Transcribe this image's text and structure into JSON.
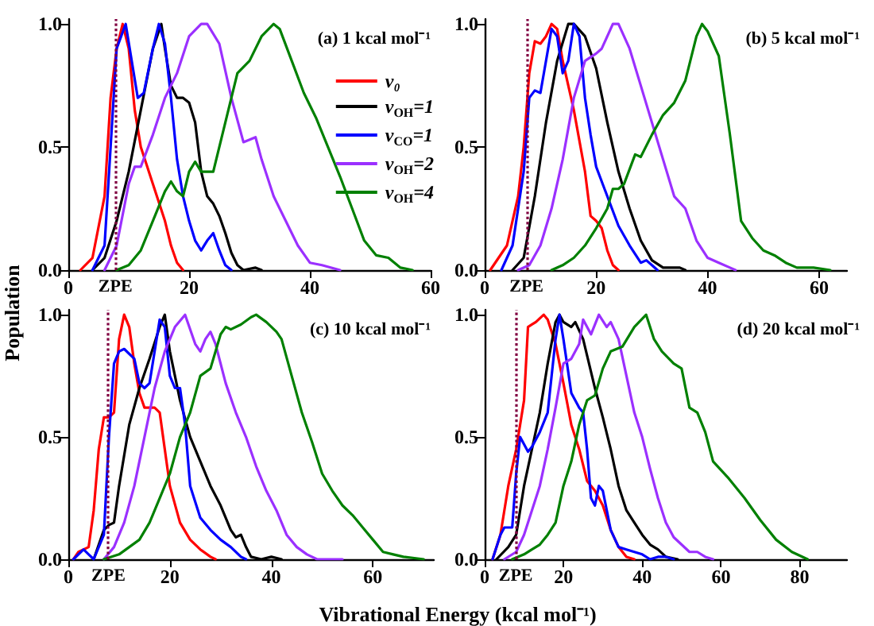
{
  "chart_data": [
    {
      "type": "line",
      "title": "(a) 1 kcal mol⁻¹",
      "ylabel": "Population",
      "xlim": [
        0,
        60
      ],
      "xticks": [
        0,
        20,
        40,
        60
      ],
      "ylim": [
        0,
        1.02
      ],
      "yticks": [
        {
          "value": 0,
          "label": "0.0"
        },
        {
          "value": 0.5,
          "label": "0.5"
        },
        {
          "value": 1,
          "label": "1.0"
        }
      ],
      "legend": "top right",
      "grid": false,
      "ref_lines": [
        {
          "axis": "x",
          "value": 7.8,
          "label": "ZPE",
          "color": "#800040",
          "line_style": "dotted"
        }
      ],
      "series": [
        {
          "name": "v₀",
          "color": "#ff0000",
          "x": [
            2,
            4,
            6,
            7,
            8,
            9,
            10,
            11,
            12,
            14,
            16,
            17,
            18,
            19
          ],
          "values": [
            0,
            0.05,
            0.3,
            0.7,
            0.9,
            1.0,
            0.9,
            0.65,
            0.5,
            0.35,
            0.2,
            0.1,
            0.03,
            0
          ]
        },
        {
          "name": "v$_{OH}$=1",
          "color": "#000000",
          "x": [
            4,
            6,
            8,
            10,
            12,
            14,
            15.4,
            16,
            17,
            18,
            19,
            20,
            21,
            22,
            23,
            24,
            25,
            26,
            27,
            28,
            29,
            31,
            32
          ],
          "values": [
            0,
            0.05,
            0.2,
            0.4,
            0.65,
            0.9,
            1.0,
            0.9,
            0.75,
            0.7,
            0.7,
            0.68,
            0.6,
            0.4,
            0.3,
            0.27,
            0.22,
            0.15,
            0.07,
            0.02,
            0,
            0.01,
            0
          ]
        },
        {
          "name": "v$_{CO}$=1",
          "color": "#0000ff",
          "x": [
            4,
            6,
            7,
            8,
            9.5,
            10.5,
            11.5,
            12.5,
            14,
            15,
            16,
            17,
            18,
            19,
            20,
            21,
            22,
            23,
            24,
            25,
            26,
            27
          ],
          "values": [
            0,
            0.1,
            0.5,
            0.9,
            1.0,
            0.85,
            0.7,
            0.72,
            0.9,
            1.0,
            0.92,
            0.7,
            0.45,
            0.3,
            0.2,
            0.12,
            0.08,
            0.12,
            0.15,
            0.08,
            0.02,
            0
          ]
        },
        {
          "name": "v$_{OH}$=2",
          "color": "#9b30ff",
          "x": [
            6,
            8,
            10,
            11,
            12,
            14,
            16,
            18,
            20,
            22,
            23,
            25,
            27,
            29,
            31,
            32,
            34,
            36,
            38,
            40,
            42,
            45
          ],
          "values": [
            0,
            0.1,
            0.35,
            0.42,
            0.42,
            0.55,
            0.7,
            0.8,
            0.95,
            1.0,
            1.0,
            0.92,
            0.7,
            0.52,
            0.54,
            0.45,
            0.3,
            0.2,
            0.1,
            0.03,
            0.02,
            0
          ]
        },
        {
          "name": "v$_{OH}$=4",
          "color": "#008000",
          "x": [
            8,
            10,
            12,
            14,
            16,
            17,
            18,
            19,
            20,
            21,
            22,
            24,
            26,
            28,
            30,
            32,
            34,
            35,
            37,
            39,
            41,
            43,
            45,
            47,
            49,
            51,
            53,
            55,
            57
          ],
          "values": [
            0,
            0.02,
            0.08,
            0.2,
            0.32,
            0.36,
            0.32,
            0.3,
            0.4,
            0.44,
            0.4,
            0.4,
            0.6,
            0.8,
            0.85,
            0.95,
            1.0,
            0.98,
            0.85,
            0.72,
            0.62,
            0.5,
            0.38,
            0.25,
            0.12,
            0.06,
            0.05,
            0.01,
            0
          ]
        }
      ]
    },
    {
      "type": "line",
      "title": "(b) 5 kcal mol⁻¹",
      "xlim": [
        0,
        65
      ],
      "xticks": [
        0,
        20,
        40,
        60
      ],
      "ylim": [
        0,
        1.02
      ],
      "yticks": [
        {
          "value": 0,
          "label": "0.0"
        },
        {
          "value": 0.5,
          "label": "0.5"
        },
        {
          "value": 1,
          "label": "1.0"
        }
      ],
      "grid": false,
      "ref_lines": [
        {
          "axis": "x",
          "value": 7.5,
          "label": "ZPE",
          "color": "#800040",
          "line_style": "dotted"
        }
      ],
      "series": [
        {
          "color": "#ff0000",
          "x": [
            1,
            4,
            6,
            7,
            8,
            9,
            10,
            11,
            12,
            13,
            14,
            16,
            18,
            19,
            20,
            21,
            22,
            23,
            24
          ],
          "values": [
            0,
            0.1,
            0.3,
            0.5,
            0.8,
            0.93,
            0.92,
            0.95,
            1.0,
            0.98,
            0.85,
            0.65,
            0.4,
            0.22,
            0.2,
            0.17,
            0.08,
            0.02,
            0
          ]
        },
        {
          "color": "#000000",
          "x": [
            5,
            7,
            9,
            11,
            13,
            15,
            16,
            18,
            20,
            22,
            24,
            26,
            28,
            30,
            32,
            35,
            36
          ],
          "values": [
            0,
            0.05,
            0.3,
            0.6,
            0.85,
            1.0,
            1.0,
            0.95,
            0.82,
            0.6,
            0.4,
            0.25,
            0.12,
            0.04,
            0.01,
            0.01,
            0
          ]
        },
        {
          "color": "#0000ff",
          "x": [
            3,
            5,
            7,
            8,
            9,
            10,
            11,
            12,
            13,
            14,
            15,
            16,
            17,
            18,
            19,
            20,
            22,
            24,
            26,
            28,
            29,
            30,
            31
          ],
          "values": [
            0,
            0.1,
            0.4,
            0.7,
            0.73,
            0.72,
            0.85,
            0.98,
            0.95,
            0.8,
            0.85,
            1.0,
            0.95,
            0.7,
            0.55,
            0.42,
            0.3,
            0.18,
            0.1,
            0.03,
            0.04,
            0.02,
            0
          ]
        },
        {
          "color": "#9b30ff",
          "x": [
            6,
            8,
            10,
            12,
            14,
            16,
            18,
            20,
            21,
            23,
            24,
            26,
            28,
            30,
            32,
            34,
            36,
            38,
            40,
            42,
            44,
            45
          ],
          "values": [
            0,
            0.02,
            0.1,
            0.25,
            0.45,
            0.7,
            0.85,
            0.88,
            0.9,
            1.0,
            1.0,
            0.9,
            0.75,
            0.6,
            0.45,
            0.3,
            0.25,
            0.12,
            0.05,
            0.03,
            0.01,
            0
          ]
        },
        {
          "color": "#008000",
          "x": [
            12,
            14,
            16,
            18,
            20,
            22,
            23,
            24,
            25,
            27,
            28,
            30,
            32,
            34,
            36,
            38,
            39,
            40,
            42,
            44,
            46,
            48,
            50,
            52,
            54,
            56,
            59,
            62
          ],
          "values": [
            0,
            0.02,
            0.05,
            0.1,
            0.17,
            0.25,
            0.33,
            0.33,
            0.35,
            0.47,
            0.46,
            0.55,
            0.63,
            0.68,
            0.77,
            0.95,
            1.0,
            0.97,
            0.87,
            0.55,
            0.2,
            0.13,
            0.08,
            0.06,
            0.03,
            0.01,
            0.01,
            0
          ]
        }
      ]
    },
    {
      "type": "line",
      "title": "(c) 10 kcal mol⁻¹",
      "xlim": [
        0,
        72
      ],
      "xticks": [
        0,
        20,
        40,
        60
      ],
      "ylim": [
        0,
        1.02
      ],
      "yticks": [
        {
          "value": 0,
          "label": "0.0"
        },
        {
          "value": 0.5,
          "label": "0.5"
        },
        {
          "value": 1,
          "label": "1.0"
        }
      ],
      "grid": false,
      "ref_lines": [
        {
          "axis": "x",
          "value": 7.9,
          "label": "ZPE",
          "color": "#800040",
          "line_style": "dotted"
        }
      ],
      "series": [
        {
          "color": "#ff0000",
          "x": [
            1,
            2,
            4,
            5,
            6,
            7,
            8,
            9,
            10,
            11,
            12,
            13,
            14,
            15,
            16,
            17,
            18,
            19,
            20,
            22,
            24,
            26,
            28,
            29
          ],
          "values": [
            0,
            0.03,
            0.05,
            0.2,
            0.45,
            0.58,
            0.58,
            0.6,
            0.9,
            1.0,
            0.95,
            0.8,
            0.68,
            0.62,
            0.62,
            0.62,
            0.6,
            0.45,
            0.3,
            0.15,
            0.08,
            0.04,
            0.01,
            0
          ]
        },
        {
          "color": "#000000",
          "x": [
            5,
            7,
            8,
            9,
            10,
            12,
            14,
            16,
            18,
            19,
            20,
            22,
            24,
            26,
            28,
            30,
            32,
            33,
            34,
            35,
            36,
            38,
            40,
            42
          ],
          "values": [
            0,
            0.12,
            0.14,
            0.15,
            0.3,
            0.55,
            0.7,
            0.82,
            0.95,
            1.0,
            0.85,
            0.65,
            0.5,
            0.4,
            0.3,
            0.22,
            0.12,
            0.09,
            0.1,
            0.05,
            0.01,
            0,
            0.01,
            0
          ]
        },
        {
          "color": "#0000ff",
          "x": [
            1,
            3,
            4,
            5,
            7,
            8,
            9,
            10,
            11,
            13,
            14,
            15,
            16,
            17,
            18,
            19,
            20,
            21,
            22,
            23,
            24,
            26,
            28,
            30,
            32,
            34,
            35
          ],
          "values": [
            0,
            0.04,
            0.02,
            0,
            0.1,
            0.5,
            0.8,
            0.85,
            0.86,
            0.82,
            0.72,
            0.7,
            0.72,
            0.85,
            0.98,
            0.95,
            0.75,
            0.7,
            0.7,
            0.55,
            0.3,
            0.17,
            0.12,
            0.08,
            0.05,
            0.01,
            0
          ]
        },
        {
          "color": "#9b30ff",
          "x": [
            7,
            9,
            11,
            13,
            15,
            17,
            19,
            21,
            23,
            25,
            26,
            27,
            28,
            29,
            31,
            33,
            35,
            37,
            39,
            41,
            43,
            45,
            47,
            49,
            54
          ],
          "values": [
            0,
            0.05,
            0.15,
            0.3,
            0.5,
            0.7,
            0.85,
            0.95,
            1.0,
            0.88,
            0.85,
            0.9,
            0.93,
            0.88,
            0.72,
            0.6,
            0.5,
            0.38,
            0.28,
            0.2,
            0.1,
            0.05,
            0.02,
            0,
            0
          ]
        },
        {
          "color": "#008000",
          "x": [
            7,
            10,
            12,
            14,
            16,
            18,
            20,
            22,
            24,
            26,
            28,
            30,
            31,
            32,
            34,
            36,
            37,
            39,
            41,
            42,
            44,
            46,
            48,
            50,
            52,
            54,
            56,
            58,
            60,
            62,
            64,
            66,
            70
          ],
          "values": [
            0,
            0.02,
            0.05,
            0.08,
            0.15,
            0.25,
            0.35,
            0.5,
            0.6,
            0.75,
            0.78,
            0.92,
            0.95,
            0.94,
            0.96,
            0.99,
            1.0,
            0.97,
            0.93,
            0.9,
            0.75,
            0.6,
            0.48,
            0.35,
            0.28,
            0.22,
            0.18,
            0.13,
            0.08,
            0.03,
            0.02,
            0.01,
            0
          ]
        }
      ]
    },
    {
      "type": "line",
      "title": "(d) 20 kcal mol⁻¹",
      "xlabel": "Vibrational Energy (kcal mol⁻¹)",
      "xlim": [
        0,
        92
      ],
      "xticks": [
        0,
        20,
        40,
        60,
        80
      ],
      "ylim": [
        0,
        1.02
      ],
      "yticks": [
        {
          "value": 0,
          "label": "0.0"
        },
        {
          "value": 0.5,
          "label": "0.5"
        },
        {
          "value": 1,
          "label": "1.0"
        }
      ],
      "grid": false,
      "ref_lines": [
        {
          "axis": "x",
          "value": 7.9,
          "label": "ZPE",
          "color": "#800040",
          "line_style": "dotted"
        }
      ],
      "series": [
        {
          "color": "#ff0000",
          "x": [
            2,
            4,
            6,
            8,
            10,
            11,
            12,
            13,
            15,
            16,
            18,
            20,
            22,
            24,
            26,
            28,
            30,
            32,
            34,
            36,
            38
          ],
          "values": [
            0,
            0.1,
            0.3,
            0.45,
            0.65,
            0.95,
            0.96,
            0.97,
            1.0,
            0.98,
            0.88,
            0.72,
            0.55,
            0.45,
            0.32,
            0.28,
            0.22,
            0.12,
            0.05,
            0.01,
            0
          ]
        },
        {
          "color": "#000000",
          "x": [
            3,
            6,
            8,
            10,
            12,
            14,
            16,
            18,
            19,
            20,
            22,
            23,
            25,
            28,
            30,
            32,
            34,
            36,
            38,
            40,
            42,
            44,
            46,
            49
          ],
          "values": [
            0,
            0.05,
            0.1,
            0.3,
            0.45,
            0.6,
            0.8,
            0.97,
            1.0,
            0.97,
            0.95,
            0.97,
            0.9,
            0.7,
            0.58,
            0.45,
            0.3,
            0.2,
            0.15,
            0.1,
            0.06,
            0.04,
            0.01,
            0
          ]
        },
        {
          "color": "#0000ff",
          "x": [
            2,
            4,
            5,
            7,
            8,
            9,
            10,
            11,
            12,
            14,
            16,
            18,
            19,
            20,
            22,
            24,
            25,
            26,
            27,
            28,
            29,
            30,
            32,
            34,
            36,
            40,
            42,
            44,
            46,
            48
          ],
          "values": [
            0,
            0.1,
            0.13,
            0.13,
            0.35,
            0.5,
            0.47,
            0.44,
            0.46,
            0.52,
            0.6,
            0.9,
            1.0,
            0.9,
            0.68,
            0.62,
            0.6,
            0.45,
            0.25,
            0.22,
            0.3,
            0.28,
            0.12,
            0.05,
            0.04,
            0.02,
            0,
            0.01,
            0.01,
            0
          ]
        },
        {
          "color": "#9b30ff",
          "x": [
            5,
            8,
            10,
            12,
            14,
            16,
            18,
            20,
            22,
            24,
            25,
            27,
            29,
            31,
            32,
            34,
            36,
            38,
            40,
            42,
            44,
            46,
            48,
            50,
            52,
            54,
            56,
            58
          ],
          "values": [
            0,
            0.03,
            0.1,
            0.2,
            0.3,
            0.45,
            0.62,
            0.8,
            0.82,
            0.88,
            0.98,
            0.92,
            1.0,
            0.95,
            0.97,
            0.9,
            0.75,
            0.6,
            0.5,
            0.37,
            0.25,
            0.15,
            0.09,
            0.06,
            0.03,
            0.03,
            0.01,
            0
          ]
        },
        {
          "color": "#008000",
          "x": [
            7,
            10,
            12,
            14,
            16,
            18,
            20,
            22,
            24,
            26,
            28,
            30,
            32,
            35,
            38,
            41,
            43,
            45,
            48,
            50,
            52,
            54,
            56,
            58,
            62,
            66,
            70,
            74,
            78,
            82
          ],
          "values": [
            0,
            0.02,
            0.04,
            0.06,
            0.1,
            0.15,
            0.3,
            0.4,
            0.55,
            0.65,
            0.67,
            0.78,
            0.85,
            0.87,
            0.95,
            1.0,
            0.9,
            0.85,
            0.8,
            0.78,
            0.62,
            0.6,
            0.52,
            0.4,
            0.33,
            0.25,
            0.16,
            0.08,
            0.03,
            0
          ]
        }
      ]
    }
  ]
}
